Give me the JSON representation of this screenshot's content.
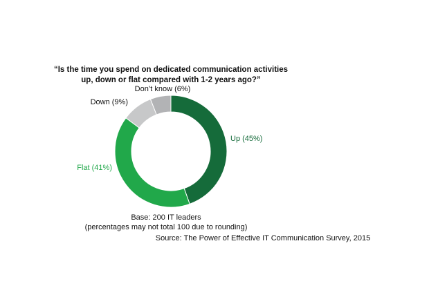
{
  "chart_data": {
    "type": "pie",
    "title": "“Is the time you spend on dedicated communication activities up, down or flat compared with 1-2 years ago?”",
    "title_lines": [
      "“Is the time you spend on dedicated communication activities",
      "up, down or flat compared with 1-2 years ago?”"
    ],
    "donut": true,
    "slices": [
      {
        "label": "Up (45%)",
        "value": 45,
        "color": "#156b3a",
        "label_color": "#156b3a"
      },
      {
        "label": "Flat (41%)",
        "value": 41,
        "color": "#21a84a",
        "label_color": "#21a84a"
      },
      {
        "label": "Down (9%)",
        "value": 9,
        "color": "#c7c8c9",
        "label_color": "#111111"
      },
      {
        "label": "Don’t know (6%)",
        "value": 6,
        "color": "#b2b3b5",
        "label_color": "#111111"
      }
    ],
    "base_note": "Base: 200 IT leaders",
    "rounding_note": "(percentages may not total 100 due to rounding)",
    "source": "Source: The Power of Effective IT Communication Survey, 2015"
  }
}
